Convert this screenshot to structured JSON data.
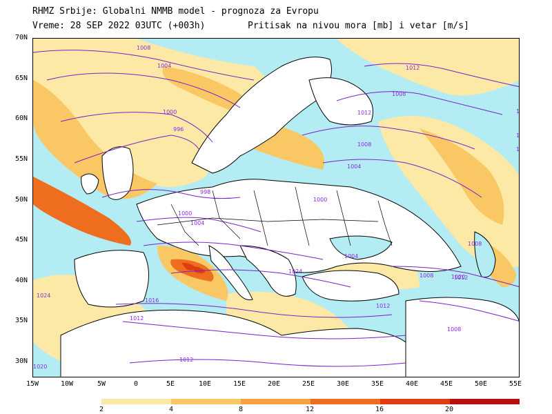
{
  "header": {
    "line1": "RHMZ Srbije: Globalni NMMB model - prognoza za Evropu",
    "line2": "Vreme: 28 SEP 2022 03UTC (+003h)",
    "line3": "Pritisak na nivou mora [mb] i vetar [m/s]"
  },
  "map": {
    "lat_labels": [
      "70N",
      "65N",
      "60N",
      "55N",
      "50N",
      "45N",
      "40N",
      "35N",
      "30N"
    ],
    "lon_labels": [
      "15W",
      "10W",
      "5W",
      "0",
      "5E",
      "10E",
      "15E",
      "20E",
      "25E",
      "30E",
      "35E",
      "40E",
      "45E",
      "50E",
      "55E"
    ],
    "isobar_labels": [
      "1008",
      "1004",
      "1000",
      "996",
      "998",
      "1000",
      "1004",
      "1000",
      "1004",
      "1008",
      "1012",
      "1016",
      "1012",
      "1012",
      "1004",
      "1008",
      "1012",
      "1012",
      "1008",
      "1008",
      "1012",
      "1008",
      "1004",
      "1000",
      "1020",
      "1024",
      "1020",
      "1020",
      "1024"
    ],
    "colors": {
      "land": "#ffffff",
      "coast": "#000000",
      "isobar": "#7a1fc8",
      "isobar_label": "#8a2be2"
    }
  },
  "legend": {
    "labels": [
      "2",
      "4",
      "8",
      "12",
      "16",
      "20"
    ],
    "colors": [
      "#b3ecf3",
      "#fde9a6",
      "#f9c865",
      "#f6a23f",
      "#ef6d1e",
      "#e03a10",
      "#b8100a"
    ]
  }
}
